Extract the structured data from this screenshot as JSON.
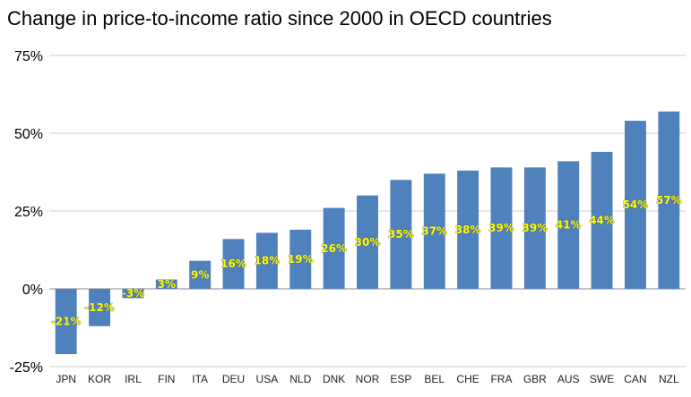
{
  "chart_data": {
    "type": "bar",
    "title": "Change in price-to-income ratio since 2000 in OECD countries",
    "xlabel": "",
    "ylabel": "",
    "ylim": [
      -25,
      75
    ],
    "yticks": [
      75,
      50,
      25,
      0,
      -25
    ],
    "ytick_labels": [
      "75%",
      "50%",
      "25%",
      "0%",
      "-25%"
    ],
    "grid": true,
    "legend": "none",
    "bar_color": "#4f81bd",
    "label_color": "#ffff00",
    "categories": [
      "JPN",
      "KOR",
      "IRL",
      "FIN",
      "ITA",
      "DEU",
      "USA",
      "NLD",
      "DNK",
      "NOR",
      "ESP",
      "BEL",
      "CHE",
      "FRA",
      "GBR",
      "AUS",
      "SWE",
      "CAN",
      "NZL"
    ],
    "values": [
      -21,
      -12,
      -3,
      3,
      9,
      16,
      18,
      19,
      26,
      30,
      35,
      37,
      38,
      39,
      39,
      41,
      44,
      54,
      57
    ],
    "data_labels": [
      "-21%",
      "-12%",
      "-3%",
      "3%",
      "9%",
      "16%",
      "18%",
      "19%",
      "26%",
      "30%",
      "35%",
      "37%",
      "38%",
      "39%",
      "39%",
      "41%",
      "44%",
      "54%",
      "57%"
    ]
  }
}
